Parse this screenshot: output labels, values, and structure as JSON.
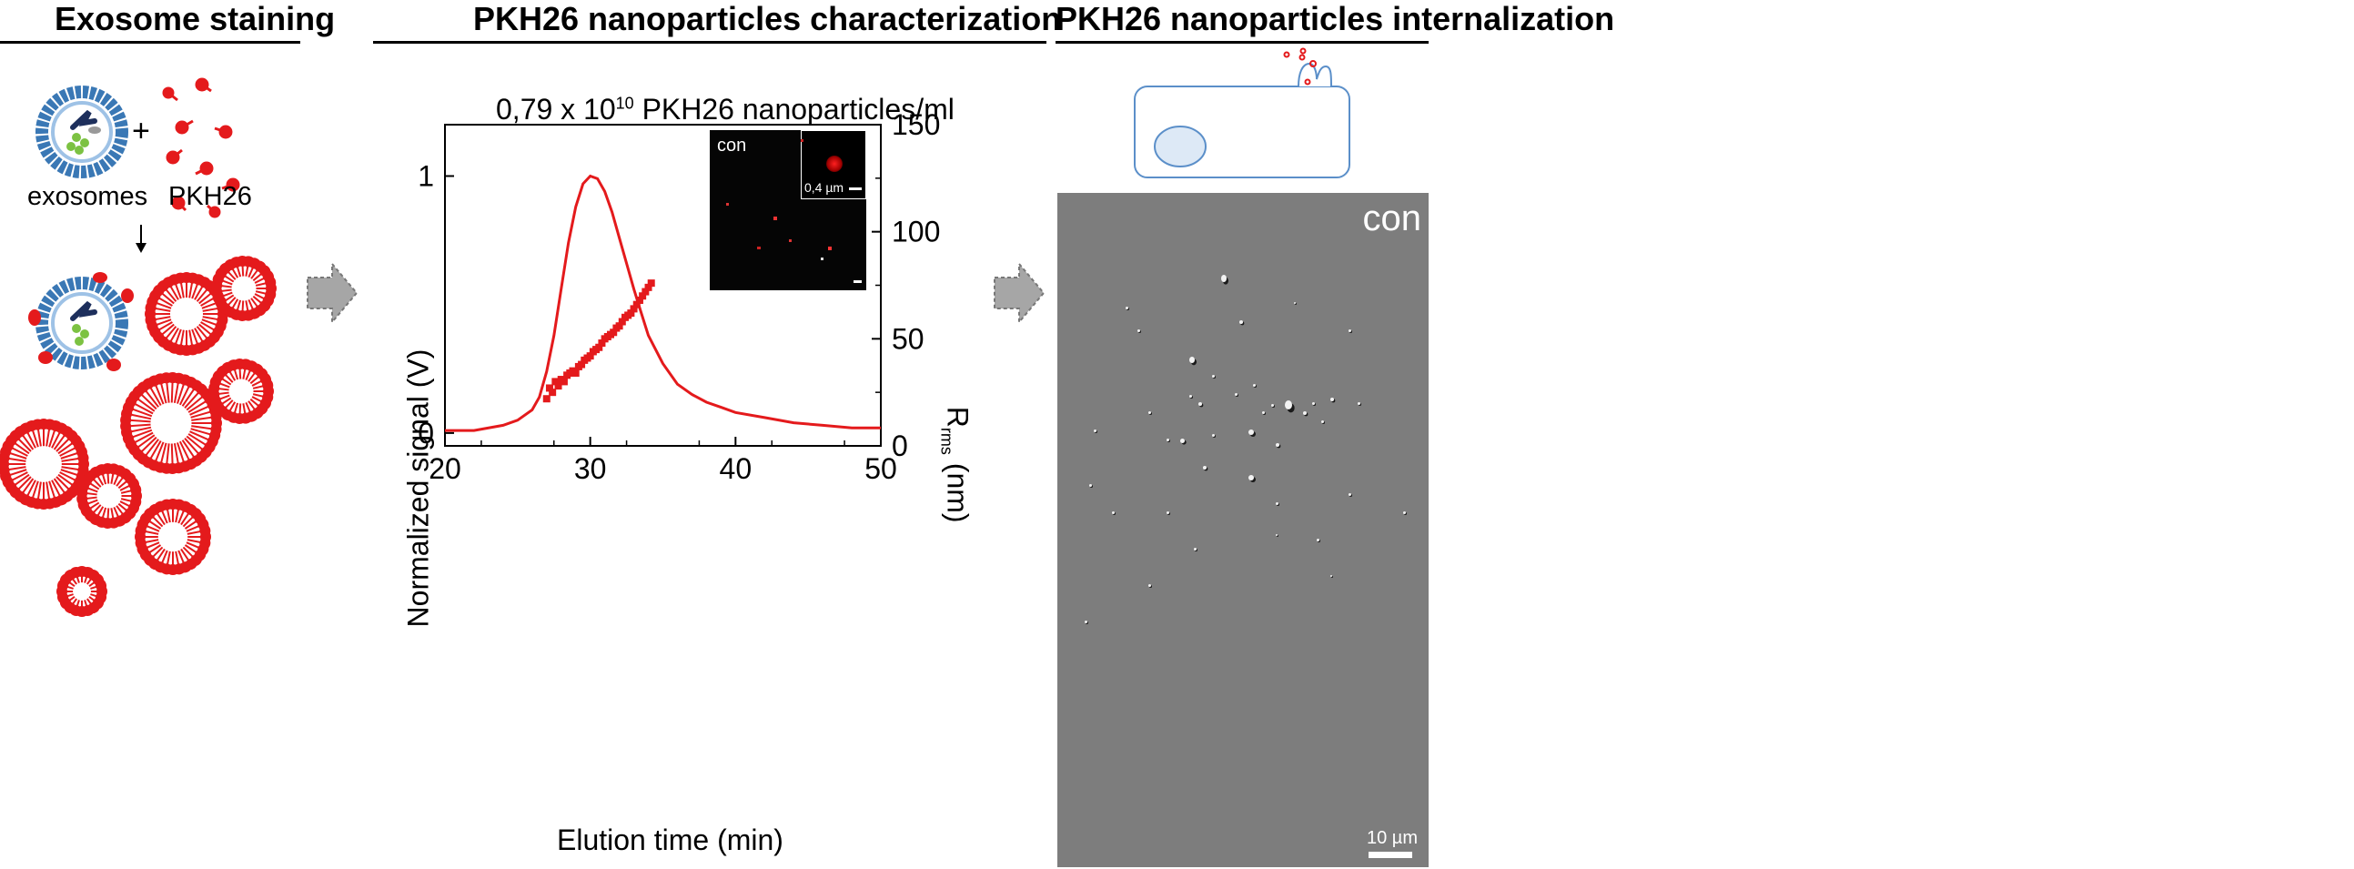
{
  "panels": {
    "left_title": "Exosome staining",
    "middle_title": "PKH26 nanoparticles characterization",
    "right_title": "PKH26 nanoparticles internalization"
  },
  "left": {
    "exosome_label": "exosomes",
    "plus": "+",
    "dye_label": "PKH26",
    "colors": {
      "membrane": "#3a78b5",
      "dye": "#e41a1c",
      "cargo_green": "#7cc242",
      "cargo_dark": "#1d2f5c"
    }
  },
  "chart_data": {
    "type": "line",
    "title_prefix": "0,79 x 10",
    "title_exponent": "10",
    "title_suffix": " PKH26 nanoparticles/ml",
    "xlabel": "Elution time (min)",
    "ylabel": "Normalized signal (V)",
    "y2label_main": "R",
    "y2label_sub": "rms",
    "y2label_unit": " (nm)",
    "xlim": [
      20,
      50
    ],
    "ylim": [
      -0.05,
      1.2
    ],
    "y2lim": [
      0,
      150
    ],
    "xticks": [
      "20",
      "30",
      "40",
      "50"
    ],
    "yticks": [
      "0",
      "1"
    ],
    "y2ticks": [
      "0",
      "50",
      "100",
      "150"
    ],
    "series": [
      {
        "kind": "line",
        "color": "#e41a1c",
        "x": [
          20,
          22,
          24,
          25,
          26,
          26.5,
          27,
          27.5,
          28,
          28.5,
          29,
          29.5,
          30,
          30.5,
          31,
          31.5,
          32,
          32.5,
          33,
          33.5,
          34,
          35,
          36,
          37,
          38,
          39,
          40,
          42,
          44,
          46,
          48,
          50
        ],
        "y": [
          0.01,
          0.01,
          0.03,
          0.05,
          0.09,
          0.14,
          0.24,
          0.38,
          0.56,
          0.74,
          0.88,
          0.97,
          1.0,
          0.99,
          0.94,
          0.86,
          0.76,
          0.66,
          0.56,
          0.47,
          0.38,
          0.27,
          0.19,
          0.15,
          0.12,
          0.1,
          0.08,
          0.06,
          0.04,
          0.03,
          0.02,
          0.02
        ]
      },
      {
        "kind": "scatter",
        "color": "#e41a1c",
        "axis": "right",
        "x": [
          27.0,
          27.2,
          27.4,
          27.6,
          27.8,
          28.0,
          28.2,
          28.4,
          28.6,
          28.8,
          29.0,
          29.2,
          29.4,
          29.6,
          29.8,
          30.0,
          30.2,
          30.4,
          30.6,
          30.8,
          31.0,
          31.2,
          31.4,
          31.6,
          31.8,
          32.0,
          32.2,
          32.4,
          32.6,
          32.8,
          33.0,
          33.2,
          33.4,
          33.6,
          33.8,
          34.0,
          34.2
        ],
        "y": [
          22,
          27,
          25,
          30,
          28,
          31,
          30,
          33,
          34,
          35,
          34,
          37,
          38,
          40,
          41,
          42,
          44,
          45,
          46,
          48,
          50,
          51,
          52,
          53,
          55,
          56,
          58,
          60,
          61,
          62,
          64,
          66,
          68,
          70,
          72,
          74,
          76
        ]
      }
    ],
    "inset": {
      "label": "con",
      "scale_label": "0,4 µm"
    }
  },
  "right": {
    "image_label": "con",
    "scale_label": "10 µm",
    "colors": {
      "cell_outline": "#5b8fc9",
      "nucleus_fill": "#dde9f6"
    }
  },
  "arrows": {
    "color": "#a6a6a6"
  }
}
